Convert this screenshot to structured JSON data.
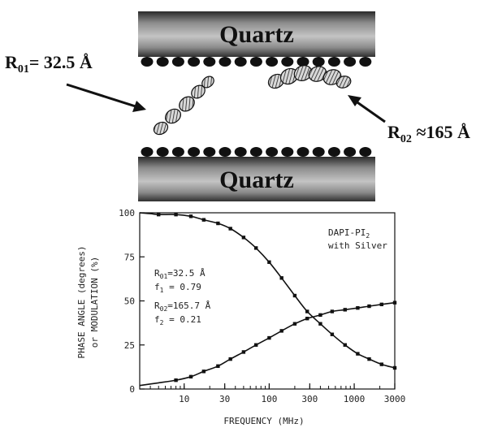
{
  "diagram": {
    "top_plate_label": "Quartz",
    "bottom_plate_label": "Quartz",
    "left_label": {
      "symbol": "R",
      "sub": "01",
      "value": "= 32.5 Å"
    },
    "right_label": {
      "symbol": "R",
      "sub": "02",
      "value": " ≈165 Å"
    }
  },
  "chart_data": {
    "type": "scatter",
    "x_scale": "log",
    "xlim": [
      3,
      3000
    ],
    "ylim": [
      0,
      100
    ],
    "xlabel": "FREQUENCY (MHz)",
    "ylabel_line1": "PHASE ANGLE (degrees)",
    "ylabel_line2": "or MODULATION (%)",
    "x_ticks": [
      10,
      30,
      100,
      300,
      1000,
      3000
    ],
    "x_tick_labels": [
      "10",
      "30",
      "100",
      "300",
      "1000",
      "3000"
    ],
    "y_ticks": [
      0,
      25,
      50,
      75,
      100
    ],
    "y_tick_labels": [
      "0",
      "25",
      "50",
      "75",
      "100"
    ],
    "legend_line1": "DAPI-PI",
    "legend_line1_sub": "2",
    "legend_line2": "with Silver",
    "annotations": [
      {
        "symbol": "R",
        "sub": "01",
        "text": "=32.5 Å"
      },
      {
        "symbol": "f",
        "sub": "1",
        "text": " = 0.79"
      },
      {
        "symbol": "R",
        "sub": "02",
        "text": "=165.7 Å"
      },
      {
        "symbol": "f",
        "sub": "2",
        "text": " = 0.21"
      }
    ],
    "series": [
      {
        "points": [
          [
            5,
            99
          ],
          [
            8,
            99
          ],
          [
            12,
            98
          ],
          [
            17,
            96
          ],
          [
            25,
            94
          ],
          [
            35,
            91
          ],
          [
            50,
            86
          ],
          [
            70,
            80
          ],
          [
            100,
            72
          ],
          [
            140,
            63
          ],
          [
            200,
            53
          ],
          [
            280,
            44
          ],
          [
            400,
            37
          ],
          [
            550,
            31
          ],
          [
            780,
            25
          ],
          [
            1100,
            20
          ],
          [
            1500,
            17
          ],
          [
            2100,
            14
          ],
          [
            3000,
            12
          ]
        ]
      },
      {
        "points": [
          [
            8,
            5
          ],
          [
            12,
            7
          ],
          [
            17,
            10
          ],
          [
            25,
            13
          ],
          [
            35,
            17
          ],
          [
            50,
            21
          ],
          [
            70,
            25
          ],
          [
            100,
            29
          ],
          [
            140,
            33
          ],
          [
            200,
            37
          ],
          [
            280,
            40
          ],
          [
            400,
            42
          ],
          [
            550,
            44
          ],
          [
            780,
            45
          ],
          [
            1100,
            46
          ],
          [
            1500,
            47
          ],
          [
            2100,
            48
          ],
          [
            3000,
            49
          ]
        ]
      }
    ]
  }
}
